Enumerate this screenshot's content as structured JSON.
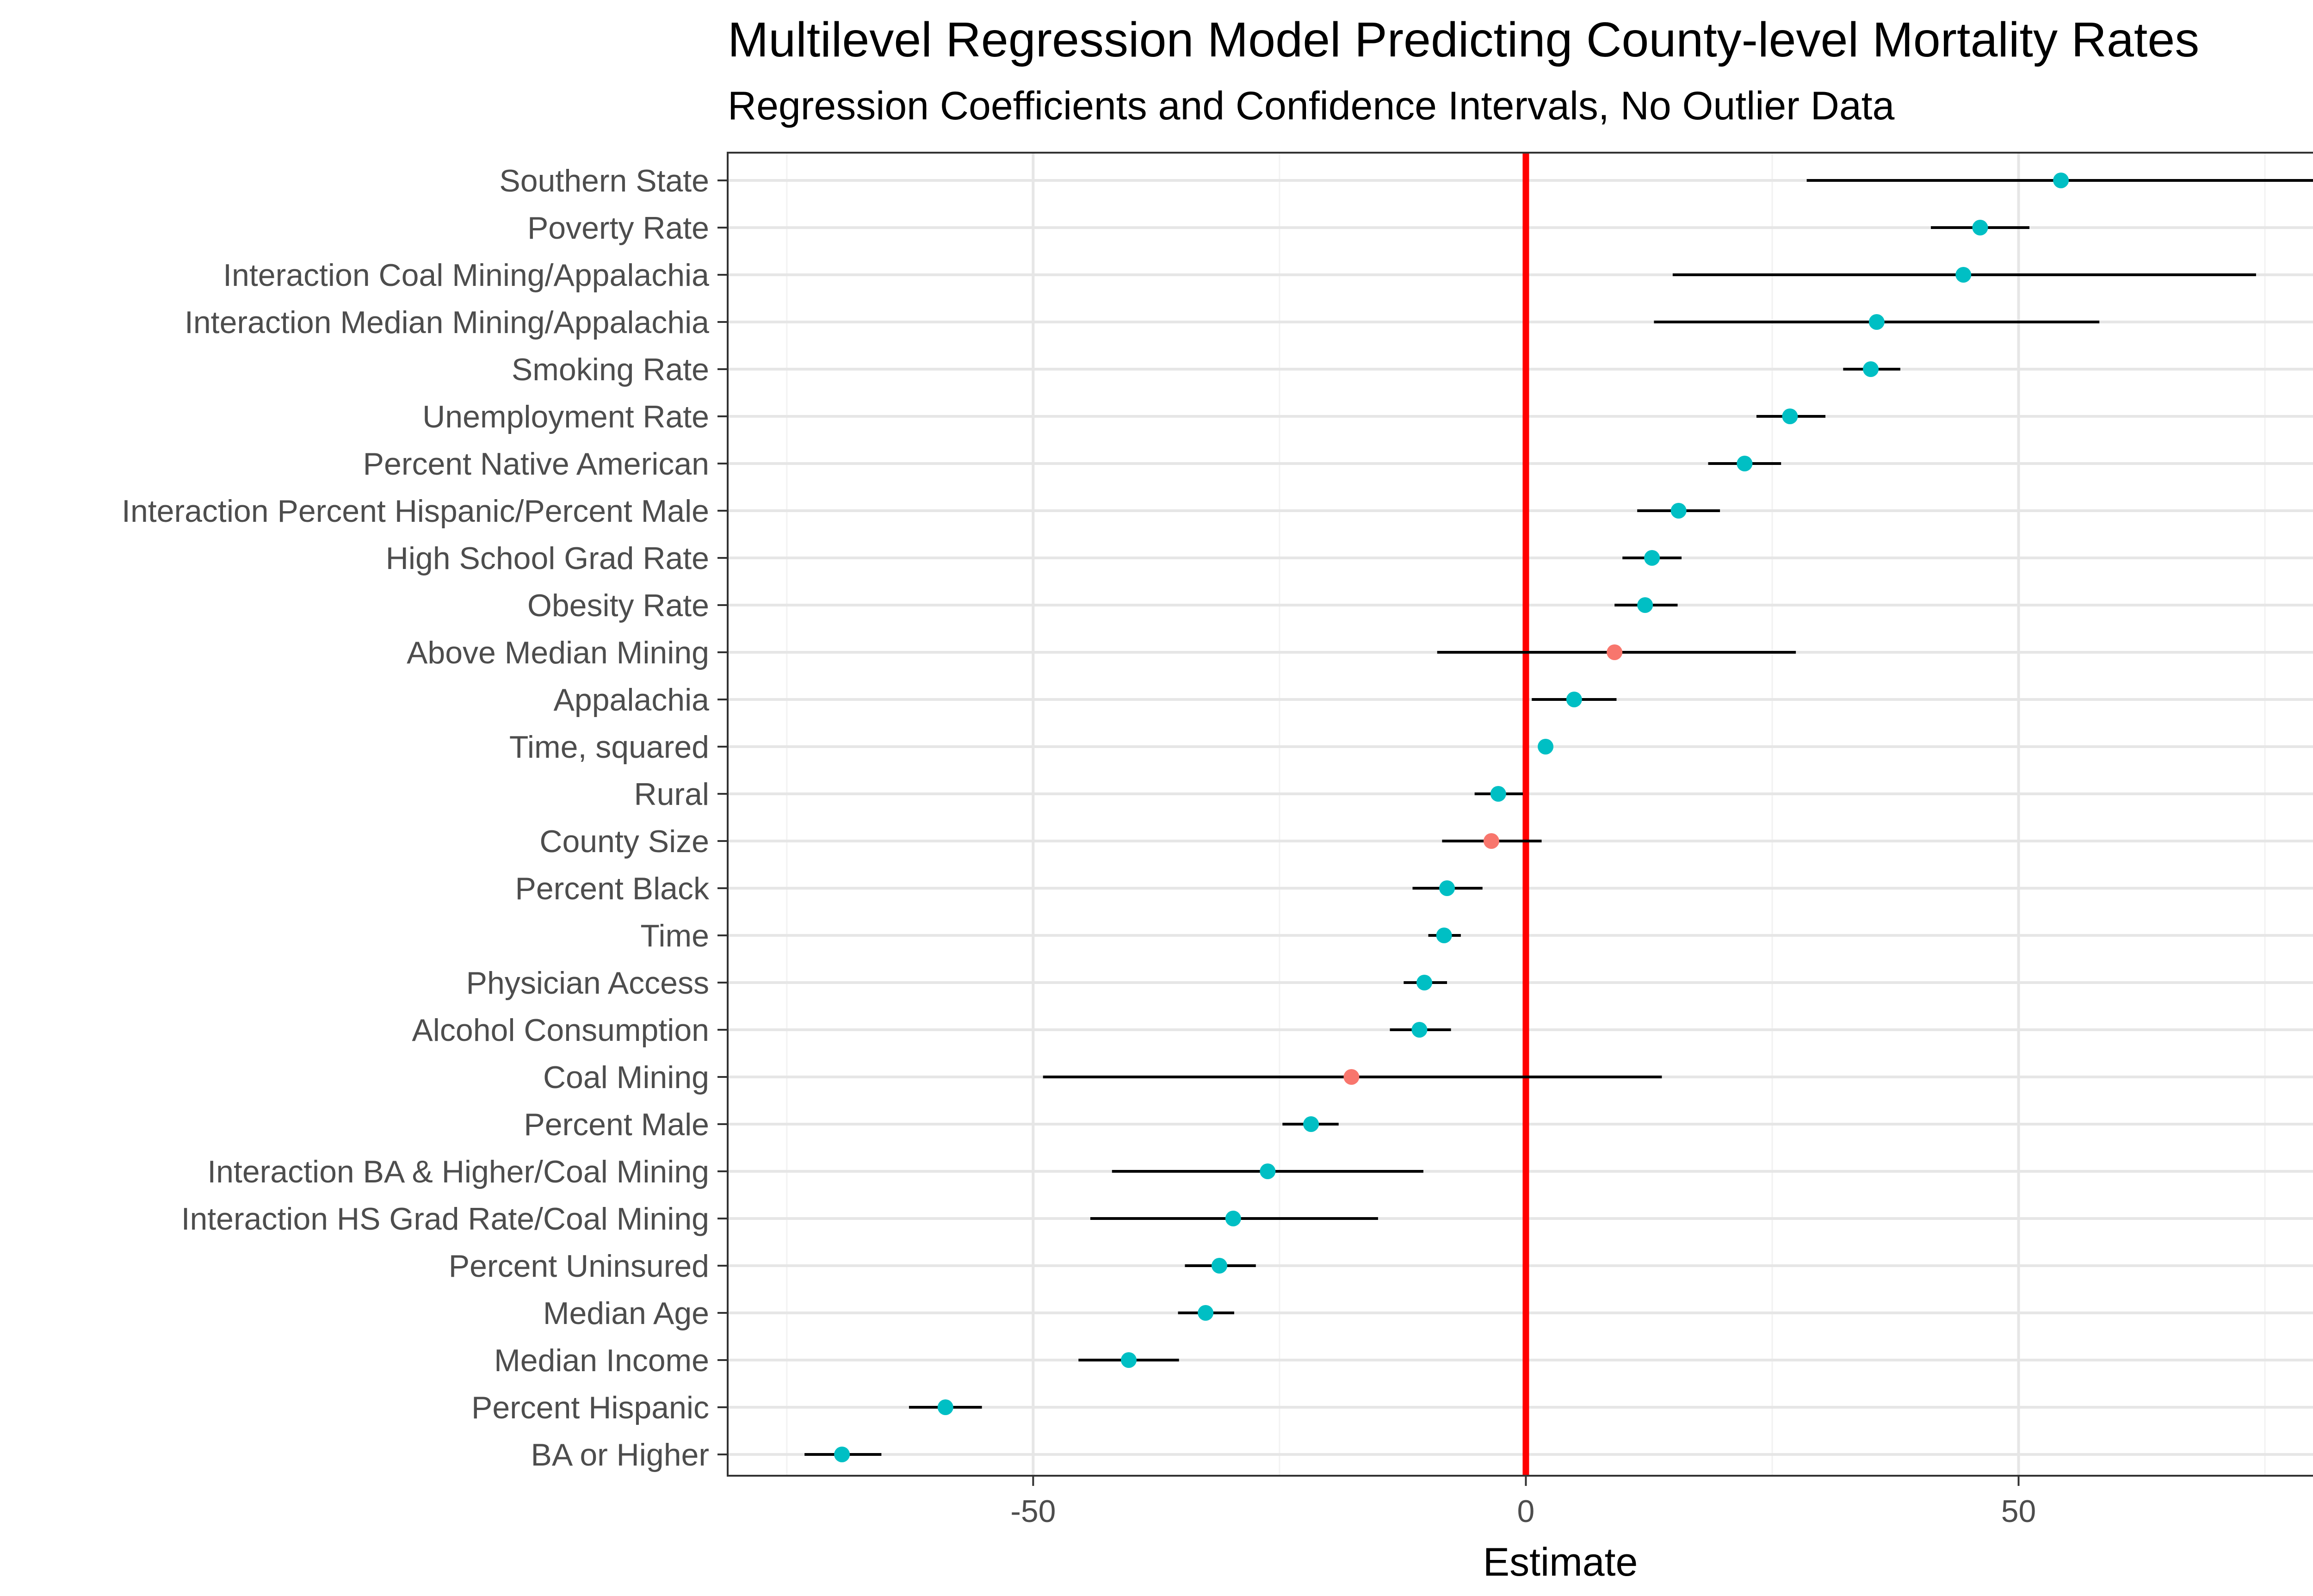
{
  "chart_data": {
    "type": "scatter",
    "title": "Multilevel Regression Model Predicting County-level Mortality Rates",
    "subtitle": "Regression Coefficients and Confidence Intervals, No Outlier Data",
    "xlabel": "Estimate",
    "xlim": [
      -81,
      88
    ],
    "x_ticks": [
      -50,
      0,
      50
    ],
    "x_tick_labels": [
      "-50",
      "0",
      "50"
    ],
    "grid": true,
    "reference_line": {
      "x": 0,
      "color": "#ff0000"
    },
    "colors": {
      "significant": "#00bfc4",
      "not_significant": "#f8766d",
      "interval": "#000000"
    },
    "points": [
      {
        "label": "Southern State",
        "estimate": 54.3,
        "lower": 28.5,
        "upper": 80.2,
        "significant": true
      },
      {
        "label": "Poverty Rate",
        "estimate": 46.1,
        "lower": 41.1,
        "upper": 51.1,
        "significant": true
      },
      {
        "label": "Interaction Coal Mining/Appalachia",
        "estimate": 44.4,
        "lower": 14.9,
        "upper": 74.1,
        "significant": true
      },
      {
        "label": "Interaction Median Mining/Appalachia",
        "estimate": 35.6,
        "lower": 13.0,
        "upper": 58.2,
        "significant": true
      },
      {
        "label": "Smoking Rate",
        "estimate": 35.0,
        "lower": 32.2,
        "upper": 38.0,
        "significant": true
      },
      {
        "label": "Unemployment Rate",
        "estimate": 26.8,
        "lower": 23.4,
        "upper": 30.4,
        "significant": true
      },
      {
        "label": "Percent Native American",
        "estimate": 22.2,
        "lower": 18.5,
        "upper": 25.9,
        "significant": true
      },
      {
        "label": "Interaction Percent Hispanic/Percent Male",
        "estimate": 15.5,
        "lower": 11.3,
        "upper": 19.7,
        "significant": true
      },
      {
        "label": "High School Grad Rate",
        "estimate": 12.8,
        "lower": 9.8,
        "upper": 15.8,
        "significant": true
      },
      {
        "label": "Obesity Rate",
        "estimate": 12.1,
        "lower": 9.0,
        "upper": 15.4,
        "significant": true
      },
      {
        "label": "Above Median Mining",
        "estimate": 9.0,
        "lower": -9.0,
        "upper": 27.4,
        "significant": false
      },
      {
        "label": "Appalachia",
        "estimate": 4.9,
        "lower": 0.6,
        "upper": 9.2,
        "significant": true
      },
      {
        "label": "Time, squared",
        "estimate": 2.0,
        "lower": 1.6,
        "upper": 2.4,
        "significant": true
      },
      {
        "label": "Rural",
        "estimate": -2.8,
        "lower": -5.2,
        "upper": -0.3,
        "significant": true
      },
      {
        "label": "County Size",
        "estimate": -3.5,
        "lower": -8.5,
        "upper": 1.6,
        "significant": false
      },
      {
        "label": "Percent Black",
        "estimate": -8.0,
        "lower": -11.5,
        "upper": -4.4,
        "significant": true
      },
      {
        "label": "Time",
        "estimate": -8.3,
        "lower": -9.9,
        "upper": -6.6,
        "significant": true
      },
      {
        "label": "Physician Access",
        "estimate": -10.3,
        "lower": -12.4,
        "upper": -8.0,
        "significant": true
      },
      {
        "label": "Alcohol Consumption",
        "estimate": -10.8,
        "lower": -13.8,
        "upper": -7.6,
        "significant": true
      },
      {
        "label": "Coal Mining",
        "estimate": -17.7,
        "lower": -49.0,
        "upper": 13.8,
        "significant": false
      },
      {
        "label": "Percent Male",
        "estimate": -21.8,
        "lower": -24.7,
        "upper": -19.0,
        "significant": true
      },
      {
        "label": "Interaction BA & Higher/Coal Mining",
        "estimate": -26.2,
        "lower": -42.0,
        "upper": -10.4,
        "significant": true
      },
      {
        "label": "Interaction HS Grad Rate/Coal Mining",
        "estimate": -29.7,
        "lower": -44.2,
        "upper": -15.0,
        "significant": true
      },
      {
        "label": "Percent Uninsured",
        "estimate": -31.1,
        "lower": -34.6,
        "upper": -27.4,
        "significant": true
      },
      {
        "label": "Median Age",
        "estimate": -32.5,
        "lower": -35.3,
        "upper": -29.6,
        "significant": true
      },
      {
        "label": "Median Income",
        "estimate": -40.3,
        "lower": -45.4,
        "upper": -35.2,
        "significant": true
      },
      {
        "label": "Percent Hispanic",
        "estimate": -58.9,
        "lower": -62.6,
        "upper": -55.2,
        "significant": true
      },
      {
        "label": "BA or Higher",
        "estimate": -69.4,
        "lower": -73.2,
        "upper": -65.4,
        "significant": true
      }
    ]
  }
}
